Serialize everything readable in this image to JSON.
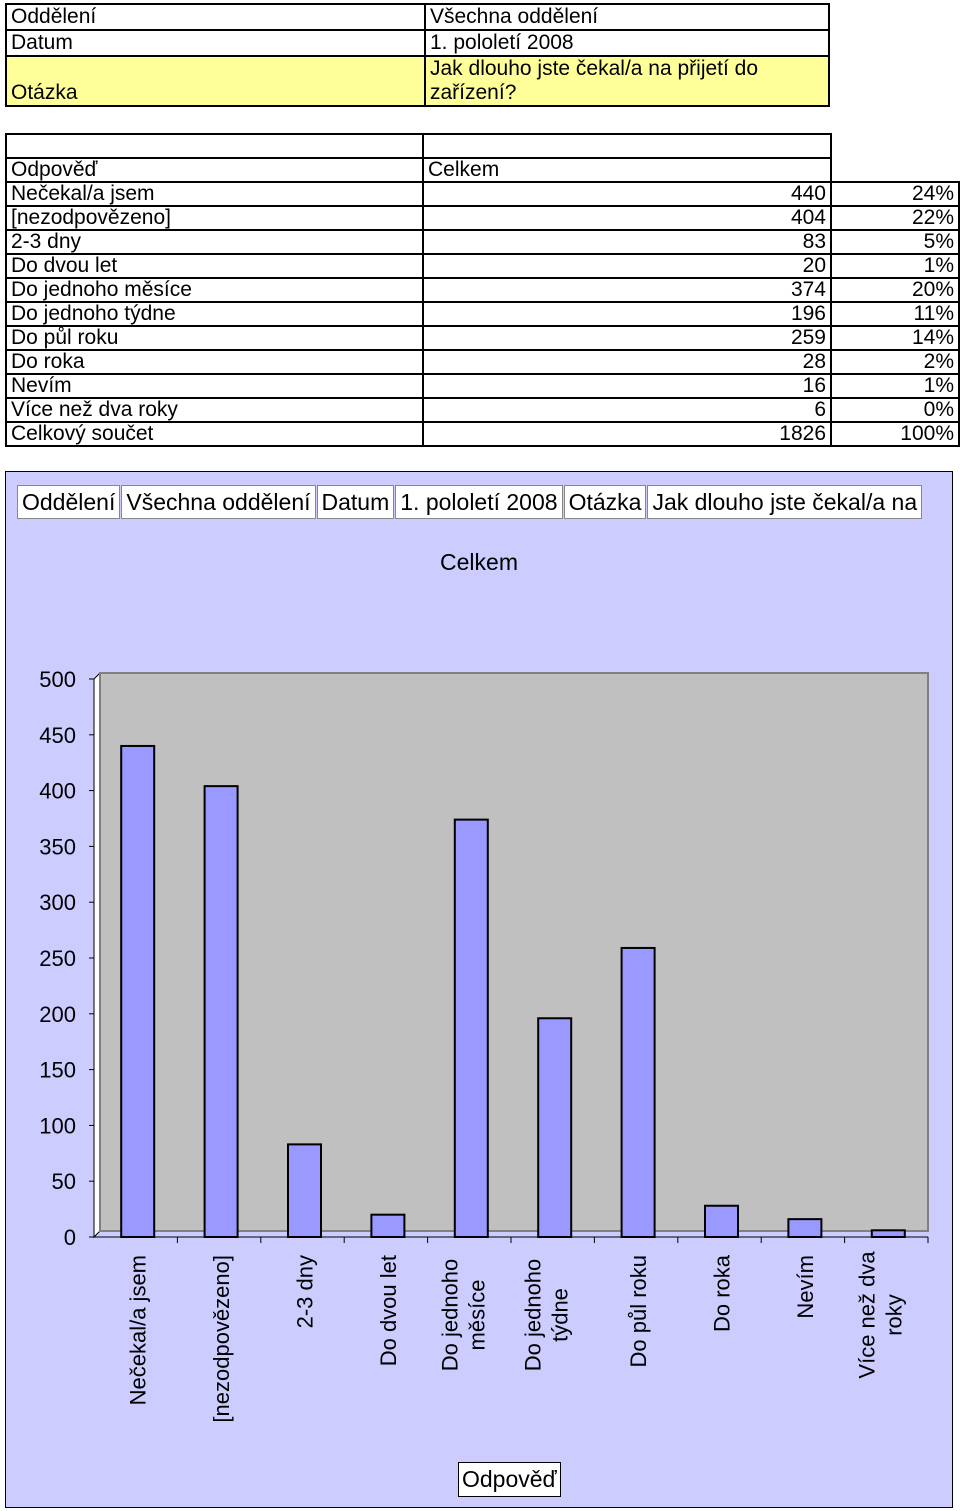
{
  "header": {
    "oddeleni_label": "Oddělení",
    "oddeleni_value": "Všechna oddělení",
    "datum_label": "Datum",
    "datum_value": "1. pololetí 2008",
    "otazka_label": "Otázka",
    "otazka_value": "Jak dlouho jste čekal/a na přijetí do zařízení?"
  },
  "table": {
    "col_answer": "Odpověď",
    "col_total": "Celkem",
    "rows": [
      {
        "label": " Nečekal/a jsem",
        "count": "440",
        "pct": "24%"
      },
      {
        "label": "[nezodpovězeno]",
        "count": "404",
        "pct": "22%"
      },
      {
        "label": "2-3 dny",
        "count": "83",
        "pct": "5%"
      },
      {
        "label": "Do dvou let",
        "count": "20",
        "pct": "1%"
      },
      {
        "label": "Do jednoho měsíce",
        "count": "374",
        "pct": "20%"
      },
      {
        "label": "Do jednoho týdne",
        "count": "196",
        "pct": "11%"
      },
      {
        "label": "Do půl roku",
        "count": "259",
        "pct": "14%"
      },
      {
        "label": "Do roka",
        "count": "28",
        "pct": "2%"
      },
      {
        "label": "Nevím",
        "count": "16",
        "pct": "1%"
      },
      {
        "label": "Více než dva roky",
        "count": "6",
        "pct": "0%"
      },
      {
        "label": "Celkový součet",
        "count": "1826",
        "pct": "100%"
      }
    ]
  },
  "chart_fields": {
    "f1": "Oddělení",
    "f2": "Všechna oddělení",
    "f3": "Datum",
    "f4": "1. pololetí 2008",
    "f5": "Otázka",
    "f6": "Jak dlouho jste čekal/a na"
  },
  "chart_data": {
    "type": "bar",
    "title": "Celkem",
    "xlabel": "Odpověď",
    "ylabel": "",
    "ylim": [
      0,
      500
    ],
    "yticks": [
      0,
      50,
      100,
      150,
      200,
      250,
      300,
      350,
      400,
      450,
      500
    ],
    "categories": [
      "Nečekal/a jsem",
      "[nezodpovězeno]",
      "2-3 dny",
      "Do dvou let",
      "Do jednoho měsíce",
      "Do jednoho týdne",
      "Do půl roku",
      "Do roka",
      "Nevím",
      "Více než dva roky"
    ],
    "category_lines": [
      [
        "Nečekal/a jsem"
      ],
      [
        "[nezodpovězeno]"
      ],
      [
        "2-3 dny"
      ],
      [
        "Do dvou let"
      ],
      [
        "Do jednoho",
        "měsíce"
      ],
      [
        "Do jednoho",
        "týdne"
      ],
      [
        "Do půl roku"
      ],
      [
        "Do roka"
      ],
      [
        "Nevím"
      ],
      [
        "Více než dva",
        "roky"
      ]
    ],
    "values": [
      440,
      404,
      83,
      20,
      374,
      196,
      259,
      28,
      16,
      6
    ],
    "grid": false,
    "colors": {
      "bar": "#9999ff",
      "plot_bg": "#c0c0c0",
      "chart_bg": "#ccccff"
    }
  }
}
